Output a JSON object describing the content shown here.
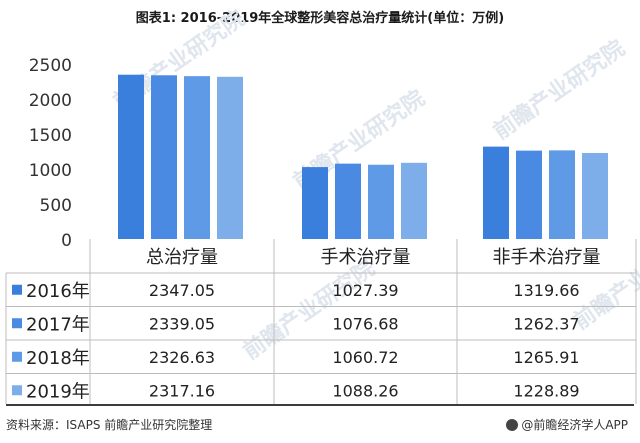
{
  "title": "图表1: 2016-2019年全球整形美容总治疗量统计(单位：万例)",
  "chart_data": {
    "type": "bar",
    "categories": [
      "总治疗量",
      "手术治疗量",
      "非手术治疗量"
    ],
    "series": [
      {
        "name": "2016年",
        "color": "#3b7fdc",
        "values": [
          2347.05,
          1027.39,
          1319.66
        ]
      },
      {
        "name": "2017年",
        "color": "#4a8ae2",
        "values": [
          2339.05,
          1076.68,
          1262.37
        ]
      },
      {
        "name": "2018年",
        "color": "#5f9ae6",
        "values": [
          2326.63,
          1060.72,
          1265.91
        ]
      },
      {
        "name": "2019年",
        "color": "#7eaeea",
        "values": [
          2317.16,
          1088.26,
          1228.89
        ]
      }
    ],
    "y_ticks": [
      "2500",
      "2000",
      "1500",
      "1000",
      "500",
      "0"
    ],
    "ylim": [
      0,
      2500
    ],
    "table_rows": [
      [
        "2347.05",
        "1027.39",
        "1319.66"
      ],
      [
        "2339.05",
        "1076.68",
        "1262.37"
      ],
      [
        "2326.63",
        "1060.72",
        "1265.91"
      ],
      [
        "2317.16",
        "1088.26",
        "1228.89"
      ]
    ],
    "grid": false,
    "legend": "data-table"
  },
  "footer": {
    "source": "资料来源：ISAPS 前瞻产业研究院整理",
    "brand": "@前瞻经济学人APP"
  },
  "watermark": "前瞻产业研究院"
}
